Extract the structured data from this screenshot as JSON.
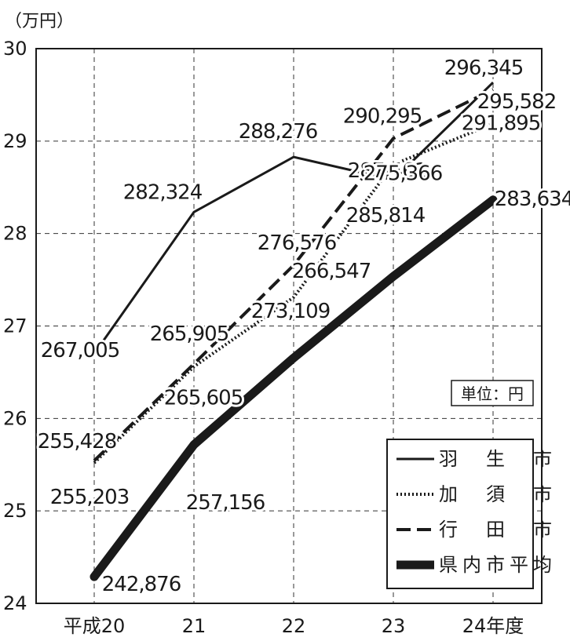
{
  "chart_data": {
    "type": "line",
    "y_unit_label": "（万円）",
    "unit_note": "単位：円",
    "categories": [
      "平成20",
      "21",
      "22",
      "23",
      "24年度"
    ],
    "ylim": [
      24,
      30
    ],
    "yticks": [
      "24",
      "25",
      "26",
      "27",
      "28",
      "29",
      "30"
    ],
    "grid": true,
    "legend_position": "bottom-right",
    "series": [
      {
        "name": "羽　生　市",
        "style": "solid",
        "color": "#1a1a1a",
        "values": [
          267005,
          282324,
          288276,
          285814,
          296345
        ],
        "labels": [
          "267,005",
          "282,324",
          "288,276",
          "285,814",
          "296,345"
        ]
      },
      {
        "name": "加　須　市",
        "style": "dotted",
        "color": "#1a1a1a",
        "values": [
          255203,
          265605,
          273109,
          287461,
          291895
        ],
        "labels": [
          "255,203",
          "265,605",
          "273,109",
          "287,461",
          "291,895"
        ]
      },
      {
        "name": "行　田　市",
        "style": "dashed",
        "color": "#1a1a1a",
        "values": [
          255428,
          265905,
          276576,
          290295,
          295582
        ],
        "labels": [
          "255,428",
          "265,905",
          "276,576",
          "290,295",
          "295,582"
        ]
      },
      {
        "name": "県内市平均",
        "style": "thick",
        "color": "#1a1a1a",
        "values": [
          242876,
          257156,
          266547,
          275366,
          283634
        ],
        "labels": [
          "242,876",
          "257,156",
          "266,547",
          "275,366",
          "283,634"
        ]
      }
    ]
  }
}
